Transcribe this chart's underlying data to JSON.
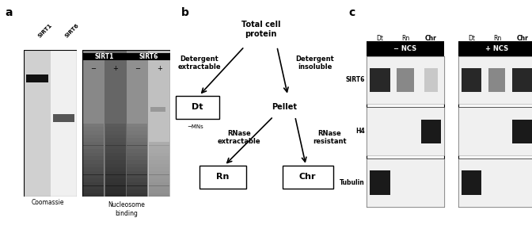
{
  "bg_color": "#ffffff",
  "panel_a": {
    "label": "a",
    "coomassie_label": "Coomassie",
    "nucleosome_label": "Nucleosome\nbinding",
    "minus_plus": [
      "−",
      "+",
      "−",
      "+"
    ],
    "arrow_label": "−MNs"
  },
  "panel_b": {
    "label": "b",
    "total_cell_protein": "Total cell\nprotein",
    "detergent_extractable": "Detergent\nextractable",
    "detergent_insoluble": "Detergent\ninsoluble",
    "pellet": "Pellet",
    "rnase_extractable": "RNase\nextractable",
    "rnase_resistant": "RNase\nresistant",
    "dt_box": "Dt",
    "rn_box": "Rn",
    "chr_box": "Chr"
  },
  "panel_c": {
    "label": "c",
    "minus_ncs": "− NCS",
    "plus_ncs": "+ NCS",
    "col_labels": [
      "Dt",
      "Rn",
      "Chr"
    ],
    "row_labels": [
      "SIRT6",
      "H4",
      "Tubulin"
    ]
  }
}
